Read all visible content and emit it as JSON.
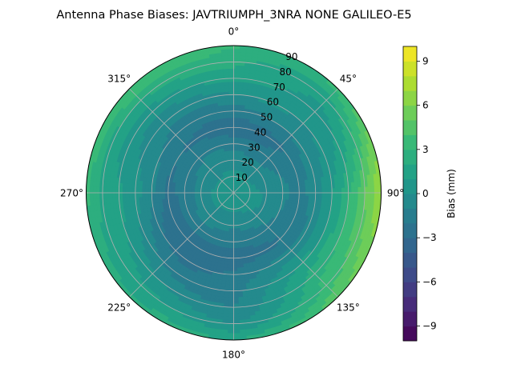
{
  "chart_data": {
    "type": "polar-contour",
    "title": "Antenna Phase Biases: JAVTRIUMPH_3NRA NONE GALILEO-E5",
    "theta_direction": "clockwise",
    "theta_zero": "top",
    "theta_tick_labels": [
      {
        "angle": 0,
        "label": "0°"
      },
      {
        "angle": 45,
        "label": "45°"
      },
      {
        "angle": 90,
        "label": "90°"
      },
      {
        "angle": 135,
        "label": "135°"
      },
      {
        "angle": 180,
        "label": "180°"
      },
      {
        "angle": 225,
        "label": "225°"
      },
      {
        "angle": 270,
        "label": "270°"
      },
      {
        "angle": 315,
        "label": "315°"
      }
    ],
    "r_range": [
      0,
      90
    ],
    "r_ticks": [
      10,
      20,
      30,
      40,
      50,
      60,
      70,
      80,
      90
    ],
    "r_tick_labels": [
      "10",
      "20",
      "30",
      "40",
      "50",
      "60",
      "70",
      "80",
      "90"
    ],
    "grid": true,
    "colorbar": {
      "label": "Bias (mm)",
      "colormap": "viridis",
      "range": [
        -10,
        10
      ],
      "ticks": [
        -9,
        -6,
        -3,
        0,
        3,
        6,
        9
      ],
      "tick_labels": [
        "−9",
        "−6",
        "−3",
        "0",
        "3",
        "6",
        "9"
      ]
    },
    "radial_profile": [
      {
        "r": 0,
        "bias": 0.5
      },
      {
        "r": 10,
        "bias": 0.2
      },
      {
        "r": 20,
        "bias": -0.5
      },
      {
        "r": 30,
        "bias": -1.5
      },
      {
        "r": 40,
        "bias": -2.5
      },
      {
        "r": 50,
        "bias": -1.5
      },
      {
        "r": 60,
        "bias": -0.5
      },
      {
        "r": 70,
        "bias": 0.5
      },
      {
        "r": 80,
        "bias": 1.5
      },
      {
        "r": 90,
        "bias": 3.0
      }
    ],
    "azimuth_modulation": [
      {
        "azimuth": 0,
        "bias_offset": 0.5
      },
      {
        "azimuth": 45,
        "bias_offset": 0.5
      },
      {
        "azimuth": 90,
        "bias_offset": 3.5
      },
      {
        "azimuth": 135,
        "bias_offset": 2.5
      },
      {
        "azimuth": 180,
        "bias_offset": -1.5
      },
      {
        "azimuth": 225,
        "bias_offset": -1.0
      },
      {
        "azimuth": 270,
        "bias_offset": 1.0
      },
      {
        "azimuth": 315,
        "bias_offset": 0.5
      }
    ]
  },
  "colors": {
    "viridis_stops": [
      "#440154",
      "#482878",
      "#3e4a89",
      "#31688e",
      "#26828e",
      "#1f9e89",
      "#35b779",
      "#6ece58",
      "#b5de2b",
      "#fde725"
    ],
    "grid": "#b0b0b0",
    "axes": "#000000"
  }
}
